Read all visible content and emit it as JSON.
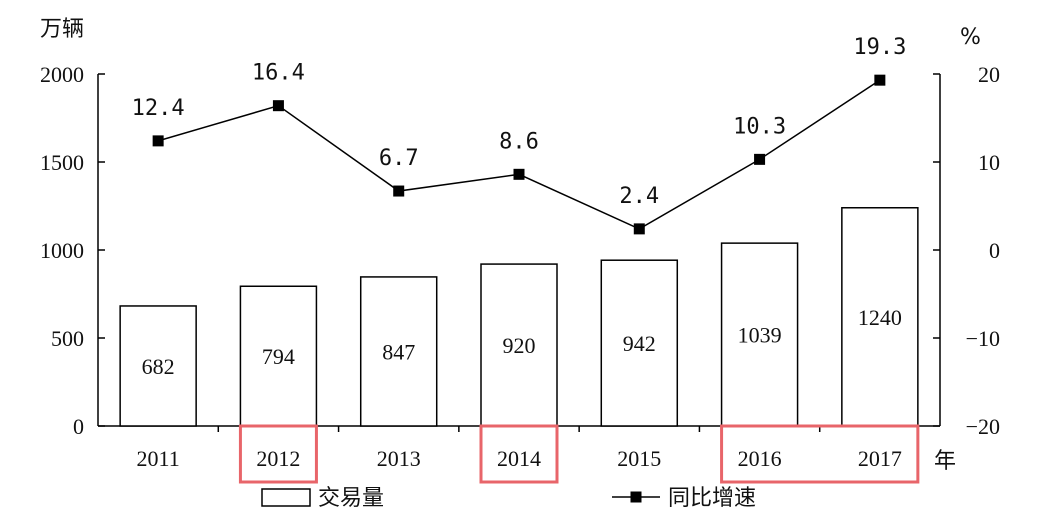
{
  "chart_data": {
    "type": "bar",
    "categories": [
      "2011",
      "2012",
      "2013",
      "2014",
      "2015",
      "2016",
      "2017"
    ],
    "series": [
      {
        "name": "交易量",
        "type": "bar",
        "axis": "left",
        "values": [
          682,
          794,
          847,
          920,
          942,
          1039,
          1240
        ]
      },
      {
        "name": "同比增速",
        "type": "line",
        "axis": "right",
        "values": [
          12.4,
          16.4,
          6.7,
          8.6,
          2.4,
          10.3,
          19.3
        ]
      }
    ],
    "point_labels": [
      "12.4",
      "16.4",
      "6.7",
      "8.6",
      "2.4",
      "10.3",
      "19.3"
    ],
    "y_left": {
      "unit": "万辆",
      "ylim": [
        0,
        2000
      ],
      "ticks": [
        "0",
        "500",
        "1000",
        "1500",
        "2000"
      ]
    },
    "y_right": {
      "unit": "%",
      "ylim": [
        -20,
        20
      ],
      "ticks": [
        "-20",
        "-10",
        "0",
        "10",
        "20"
      ]
    },
    "x_unit": "年",
    "highlighted_categories": [
      [
        "2012"
      ],
      [
        "2014"
      ],
      [
        "2016",
        "2017"
      ]
    ],
    "highlight_color": "#e8656a",
    "grid": false,
    "legend_position": "bottom"
  }
}
